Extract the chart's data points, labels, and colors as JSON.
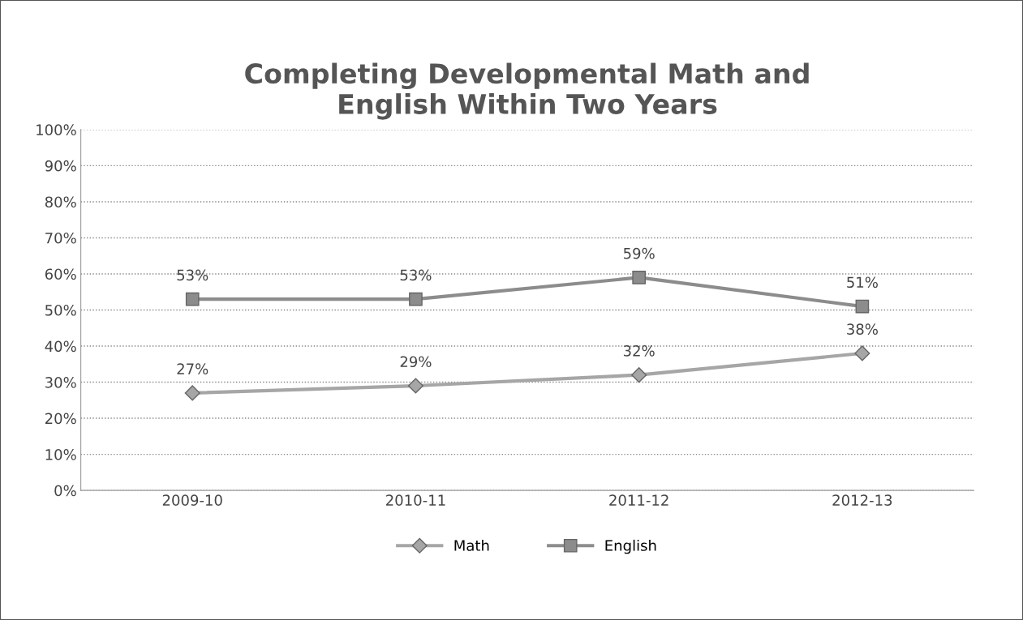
{
  "chart_data": {
    "type": "line",
    "title": "Completing Developmental Math and\nEnglish Within Two Years",
    "categories": [
      "2009-10",
      "2010-11",
      "2011-12",
      "2012-13"
    ],
    "series": [
      {
        "name": "Math",
        "color": "#a6a6a6",
        "marker": "diamond",
        "values": [
          27,
          29,
          32,
          38
        ],
        "value_labels": [
          "27%",
          "29%",
          "32%",
          "38%"
        ]
      },
      {
        "name": "English",
        "color": "#8c8c8c",
        "marker": "square",
        "values": [
          53,
          53,
          59,
          51
        ],
        "value_labels": [
          "53%",
          "53%",
          "59%",
          "51%"
        ]
      }
    ],
    "ylim": [
      0,
      100
    ],
    "yticks": [
      {
        "value": 0,
        "label": "0%"
      },
      {
        "value": 10,
        "label": "10%"
      },
      {
        "value": 20,
        "label": "20%"
      },
      {
        "value": 30,
        "label": "30%"
      },
      {
        "value": 40,
        "label": "40%"
      },
      {
        "value": 50,
        "label": "50%"
      },
      {
        "value": 60,
        "label": "60%"
      },
      {
        "value": 70,
        "label": "70%"
      },
      {
        "value": 80,
        "label": "80%"
      },
      {
        "value": 90,
        "label": "90%"
      },
      {
        "value": 100,
        "label": "100%"
      }
    ],
    "grid": "y",
    "legend": "bottom",
    "line_style": "solid"
  }
}
